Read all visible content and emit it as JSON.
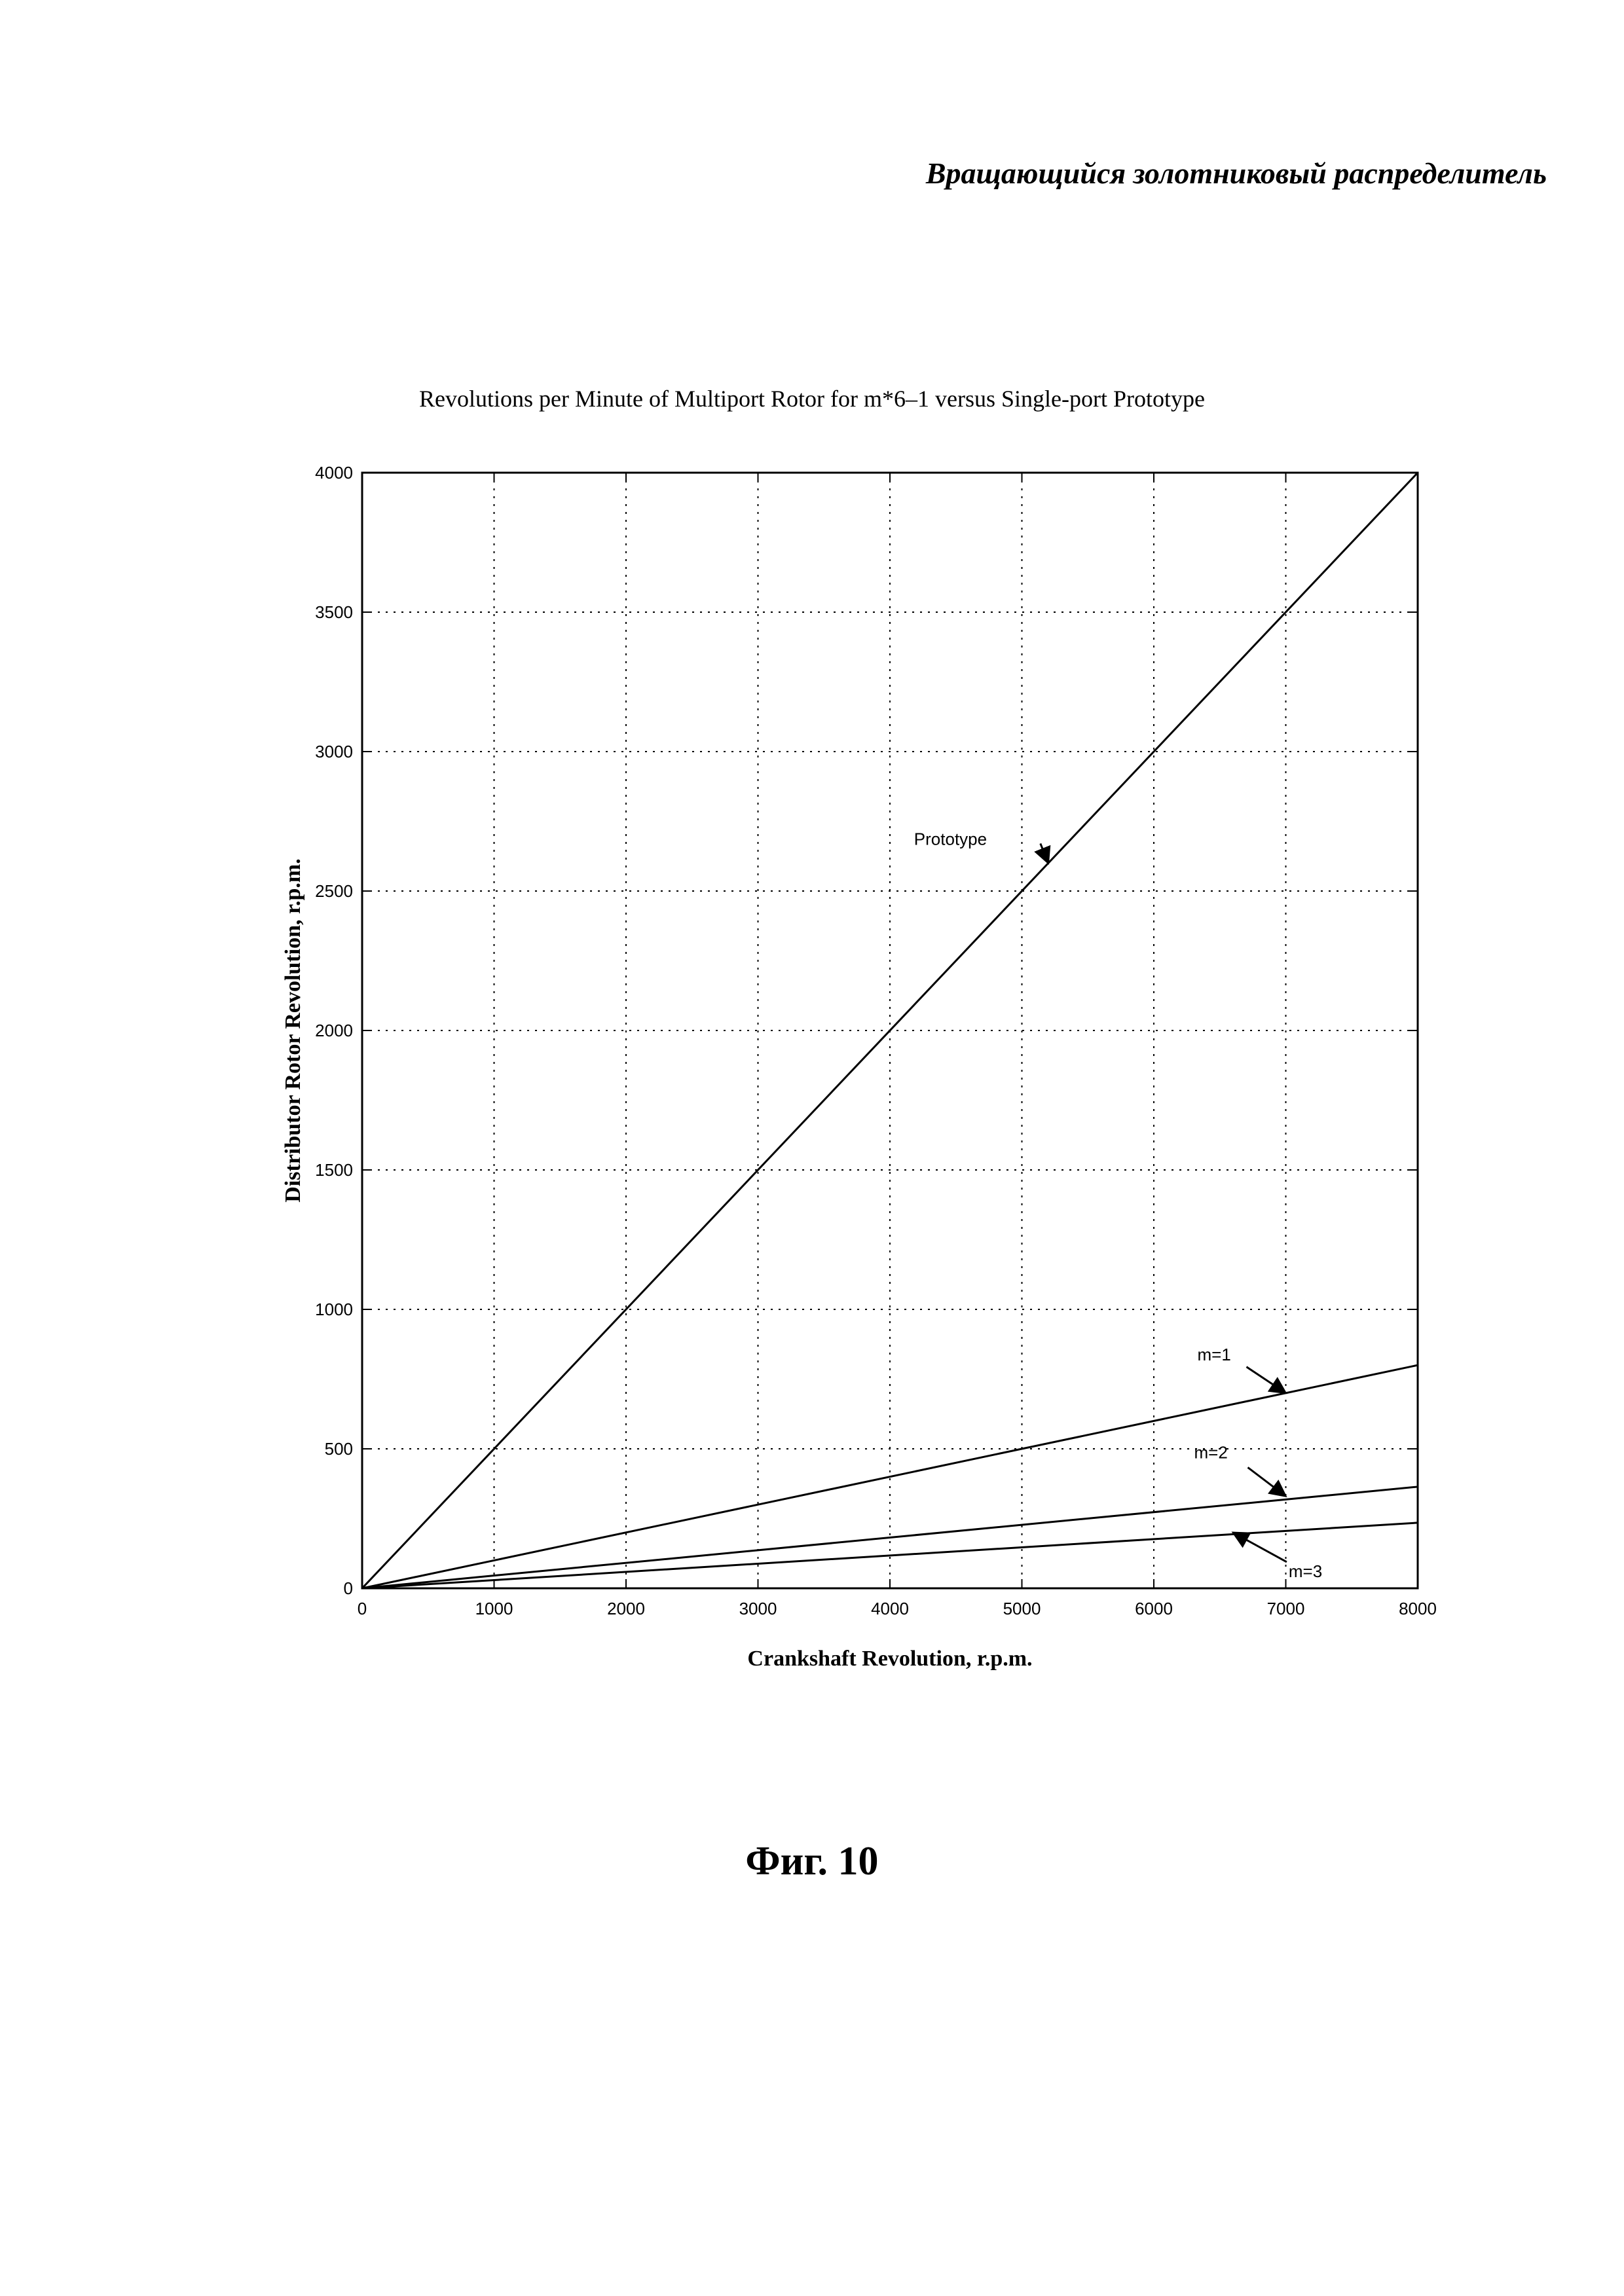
{
  "page": {
    "header_title": "Вращающийся золотниковый распределитель",
    "figure_caption": "Фиг. 10"
  },
  "chart_data": {
    "type": "line",
    "title": "Revolutions per Minute of Multiport Rotor for m*6–1 versus Single-port Prototype",
    "xlabel": "Crankshaft Revolution, r.p.m.",
    "ylabel": "Distributor Rotor Revolution, r.p.m.",
    "xlim": [
      0,
      8000
    ],
    "ylim": [
      0,
      4000
    ],
    "xticks": [
      0,
      1000,
      2000,
      3000,
      4000,
      5000,
      6000,
      7000,
      8000
    ],
    "yticks": [
      0,
      500,
      1000,
      1500,
      2000,
      2500,
      3000,
      3500,
      4000
    ],
    "grid": true,
    "grid_style": "dotted",
    "line_color": "#000000",
    "series": [
      {
        "name": "Prototype",
        "x": [
          0,
          8000
        ],
        "y": [
          0,
          4000
        ]
      },
      {
        "name": "m=1",
        "x": [
          0,
          8000
        ],
        "y": [
          0,
          800
        ]
      },
      {
        "name": "m=2",
        "x": [
          0,
          8000
        ],
        "y": [
          0,
          364
        ]
      },
      {
        "name": "m=3",
        "x": [
          0,
          8000
        ],
        "y": [
          0,
          235
        ]
      }
    ],
    "annotations": [
      {
        "text": "Prototype",
        "series": "Prototype",
        "points_to": [
          5200,
          2600
        ]
      },
      {
        "text": "m=1",
        "series": "m=1",
        "points_to": [
          7000,
          700
        ]
      },
      {
        "text": "m=2",
        "series": "m=2",
        "points_to": [
          7000,
          330
        ]
      },
      {
        "text": "m=3",
        "series": "m=3",
        "points_to": [
          6600,
          200
        ]
      }
    ]
  }
}
